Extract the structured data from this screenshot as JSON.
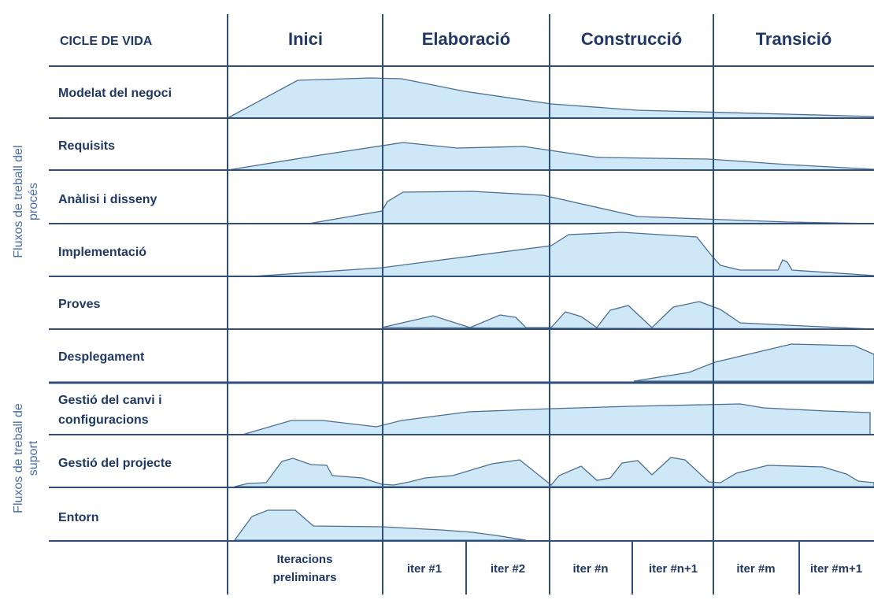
{
  "header": {
    "cicle_label": "CICLE DE VIDA",
    "phases": [
      "Inici",
      "Elaboració",
      "Construcció",
      "Transició"
    ]
  },
  "groups": {
    "proces": [
      "Fluxos de treball del",
      "procés"
    ],
    "suport": [
      "Fluxos de treball de",
      "suport"
    ]
  },
  "workflows": [
    [
      "Modelat del negoci"
    ],
    [
      "Requisits"
    ],
    [
      "Anàlisi i disseny"
    ],
    [
      "Implementació"
    ],
    [
      "Proves"
    ],
    [
      "Desplegament"
    ],
    [
      "Gestió del canvi i",
      "configuracions"
    ],
    [
      "Gestió del projecte"
    ],
    [
      "Entorn"
    ]
  ],
  "iterations": [
    [
      "Iteracions",
      "preliminars"
    ],
    [
      "iter #1"
    ],
    [
      "iter #2"
    ],
    [
      "iter #n"
    ],
    [
      "iter #n+1"
    ],
    [
      "iter #m"
    ],
    [
      "iter #m+1"
    ]
  ],
  "colors": {
    "line": "#2f4f7a",
    "text": "#1f3864",
    "fill": "#cfe8f8",
    "group_text": "#4a6fa5"
  }
}
